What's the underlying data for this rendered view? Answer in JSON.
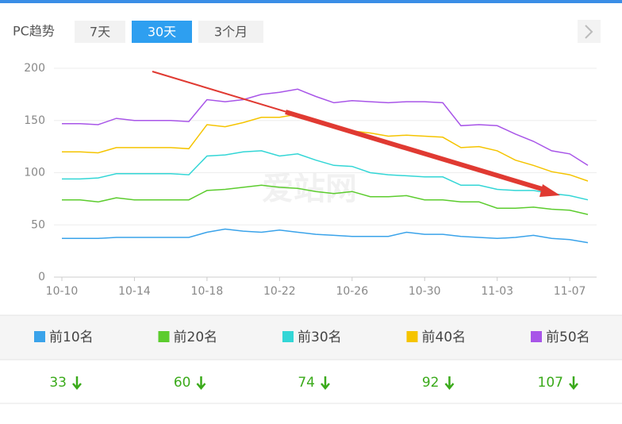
{
  "header": {
    "title": "PC趋势",
    "tabs": [
      "7天",
      "30天",
      "3个月"
    ],
    "active_tab": 1
  },
  "chart_data": {
    "type": "line",
    "watermark": "爱站网",
    "categories": [
      "10-10",
      null,
      null,
      null,
      "10-14",
      null,
      null,
      null,
      "10-18",
      null,
      null,
      null,
      "10-22",
      null,
      null,
      null,
      "10-26",
      null,
      null,
      null,
      "10-30",
      null,
      null,
      null,
      "11-03",
      null,
      null,
      null,
      "11-07",
      null
    ],
    "ylim": [
      0,
      200
    ],
    "yticks": [
      0,
      50,
      100,
      150,
      200
    ],
    "grid": true,
    "series": [
      {
        "name": "前10名",
        "color": "#3aa3ea",
        "values": [
          37,
          37,
          37,
          38,
          38,
          38,
          38,
          38,
          43,
          46,
          44,
          43,
          45,
          43,
          41,
          40,
          39,
          39,
          39,
          43,
          41,
          41,
          39,
          38,
          37,
          38,
          40,
          37,
          36,
          33
        ]
      },
      {
        "name": "前20名",
        "color": "#5ccc2e",
        "values": [
          74,
          74,
          72,
          76,
          74,
          74,
          74,
          74,
          83,
          84,
          86,
          88,
          86,
          85,
          82,
          80,
          82,
          77,
          77,
          78,
          74,
          74,
          72,
          72,
          66,
          66,
          67,
          65,
          64,
          60
        ]
      },
      {
        "name": "前30名",
        "color": "#33d6d6",
        "values": [
          94,
          94,
          95,
          99,
          99,
          99,
          99,
          98,
          116,
          117,
          120,
          121,
          116,
          118,
          112,
          107,
          106,
          100,
          98,
          97,
          96,
          96,
          88,
          88,
          84,
          83,
          83,
          80,
          78,
          74
        ]
      },
      {
        "name": "前40名",
        "color": "#f5c400",
        "values": [
          120,
          120,
          119,
          124,
          124,
          124,
          124,
          123,
          146,
          144,
          148,
          153,
          153,
          156,
          150,
          145,
          140,
          138,
          135,
          136,
          135,
          134,
          124,
          125,
          121,
          112,
          107,
          101,
          98,
          92
        ]
      },
      {
        "name": "前50名",
        "color": "#a855e8",
        "values": [
          147,
          147,
          146,
          152,
          150,
          150,
          150,
          149,
          170,
          168,
          170,
          175,
          177,
          180,
          173,
          167,
          169,
          168,
          167,
          168,
          168,
          167,
          145,
          146,
          145,
          137,
          130,
          121,
          118,
          107
        ]
      }
    ]
  }
}
